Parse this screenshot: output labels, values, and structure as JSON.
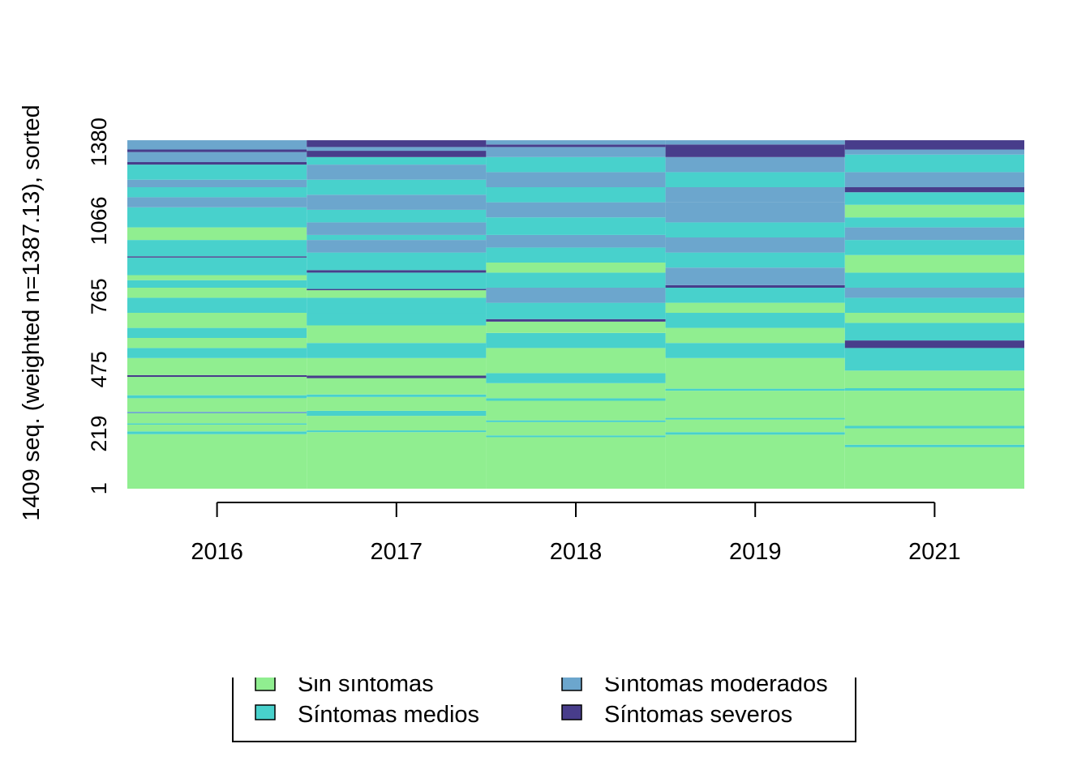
{
  "chart_data": {
    "type": "sequence-index-plot",
    "ylabel": "1409 seq. (weighted n=1387.13), sorted",
    "xlabel": "",
    "categories": [
      "2016",
      "2017",
      "2018",
      "2019",
      "2021"
    ],
    "y_ticks": [
      "1",
      "219",
      "475",
      "765",
      "1066",
      "1380"
    ],
    "y_tick_values": [
      1,
      219,
      475,
      765,
      1066,
      1380
    ],
    "y_max": 1387.13,
    "states": [
      {
        "name": "Sin síntomas",
        "color": "#90EE90"
      },
      {
        "name": "Síntomas medios",
        "color": "#48D1CC"
      },
      {
        "name": "Síntomas moderados",
        "color": "#6CA6CD"
      },
      {
        "name": "Síntomas severos",
        "color": "#483D8B"
      }
    ],
    "columns": [
      {
        "year": "2016",
        "segments": [
          [
            0,
            217,
            0
          ],
          [
            217,
            228,
            1
          ],
          [
            228,
            255,
            0
          ],
          [
            255,
            260,
            1
          ],
          [
            260,
            300,
            0
          ],
          [
            300,
            306,
            2
          ],
          [
            306,
            360,
            0
          ],
          [
            360,
            372,
            1
          ],
          [
            372,
            445,
            0
          ],
          [
            445,
            452,
            3
          ],
          [
            452,
            520,
            0
          ],
          [
            520,
            560,
            1
          ],
          [
            560,
            600,
            0
          ],
          [
            600,
            640,
            1
          ],
          [
            640,
            700,
            0
          ],
          [
            700,
            760,
            1
          ],
          [
            760,
            800,
            0
          ],
          [
            800,
            830,
            1
          ],
          [
            830,
            850,
            0
          ],
          [
            850,
            920,
            1
          ],
          [
            920,
            925,
            3
          ],
          [
            925,
            990,
            1
          ],
          [
            990,
            1040,
            0
          ],
          [
            1040,
            1120,
            1
          ],
          [
            1120,
            1160,
            2
          ],
          [
            1160,
            1200,
            1
          ],
          [
            1200,
            1230,
            2
          ],
          [
            1230,
            1290,
            1
          ],
          [
            1290,
            1300,
            3
          ],
          [
            1300,
            1340,
            2
          ],
          [
            1340,
            1350,
            3
          ],
          [
            1350,
            1387,
            2
          ]
        ]
      },
      {
        "year": "2017",
        "segments": [
          [
            0,
            225,
            0
          ],
          [
            225,
            232,
            1
          ],
          [
            232,
            290,
            0
          ],
          [
            290,
            310,
            1
          ],
          [
            310,
            365,
            0
          ],
          [
            365,
            375,
            1
          ],
          [
            375,
            440,
            0
          ],
          [
            440,
            450,
            3
          ],
          [
            450,
            520,
            0
          ],
          [
            520,
            580,
            1
          ],
          [
            580,
            650,
            0
          ],
          [
            650,
            700,
            1
          ],
          [
            700,
            760,
            1
          ],
          [
            760,
            790,
            0
          ],
          [
            790,
            795,
            3
          ],
          [
            795,
            860,
            1
          ],
          [
            860,
            870,
            3
          ],
          [
            870,
            940,
            1
          ],
          [
            940,
            990,
            2
          ],
          [
            990,
            1010,
            1
          ],
          [
            1010,
            1060,
            2
          ],
          [
            1060,
            1110,
            1
          ],
          [
            1110,
            1170,
            2
          ],
          [
            1170,
            1230,
            1
          ],
          [
            1230,
            1290,
            2
          ],
          [
            1290,
            1320,
            1
          ],
          [
            1320,
            1345,
            3
          ],
          [
            1345,
            1360,
            2
          ],
          [
            1360,
            1387,
            3
          ]
        ]
      },
      {
        "year": "2018",
        "segments": [
          [
            0,
            205,
            0
          ],
          [
            205,
            212,
            1
          ],
          [
            212,
            265,
            0
          ],
          [
            265,
            272,
            1
          ],
          [
            272,
            350,
            0
          ],
          [
            350,
            360,
            1
          ],
          [
            360,
            420,
            0
          ],
          [
            420,
            460,
            1
          ],
          [
            460,
            560,
            0
          ],
          [
            560,
            620,
            1
          ],
          [
            620,
            665,
            0
          ],
          [
            665,
            675,
            3
          ],
          [
            675,
            740,
            1
          ],
          [
            740,
            800,
            2
          ],
          [
            800,
            860,
            1
          ],
          [
            860,
            900,
            0
          ],
          [
            900,
            960,
            1
          ],
          [
            960,
            1010,
            2
          ],
          [
            1010,
            1080,
            1
          ],
          [
            1080,
            1140,
            2
          ],
          [
            1140,
            1200,
            1
          ],
          [
            1200,
            1260,
            2
          ],
          [
            1260,
            1320,
            1
          ],
          [
            1320,
            1360,
            2
          ],
          [
            1360,
            1370,
            3
          ],
          [
            1370,
            1387,
            2
          ]
        ]
      },
      {
        "year": "2019",
        "segments": [
          [
            0,
            215,
            0
          ],
          [
            215,
            225,
            1
          ],
          [
            225,
            275,
            0
          ],
          [
            275,
            282,
            1
          ],
          [
            282,
            390,
            0
          ],
          [
            390,
            398,
            1
          ],
          [
            398,
            520,
            0
          ],
          [
            520,
            580,
            1
          ],
          [
            580,
            640,
            0
          ],
          [
            640,
            700,
            1
          ],
          [
            700,
            740,
            0
          ],
          [
            740,
            800,
            1
          ],
          [
            800,
            810,
            3
          ],
          [
            810,
            880,
            2
          ],
          [
            880,
            940,
            1
          ],
          [
            940,
            1000,
            2
          ],
          [
            1000,
            1060,
            1
          ],
          [
            1060,
            1140,
            2
          ],
          [
            1140,
            1200,
            2
          ],
          [
            1200,
            1260,
            1
          ],
          [
            1260,
            1320,
            2
          ],
          [
            1320,
            1370,
            3
          ],
          [
            1370,
            1387,
            2
          ]
        ]
      },
      {
        "year": "2021",
        "segments": [
          [
            0,
            165,
            0
          ],
          [
            165,
            175,
            1
          ],
          [
            175,
            240,
            0
          ],
          [
            240,
            250,
            1
          ],
          [
            250,
            390,
            0
          ],
          [
            390,
            400,
            1
          ],
          [
            400,
            470,
            0
          ],
          [
            470,
            560,
            1
          ],
          [
            560,
            590,
            3
          ],
          [
            590,
            660,
            1
          ],
          [
            660,
            700,
            0
          ],
          [
            700,
            760,
            1
          ],
          [
            760,
            800,
            2
          ],
          [
            800,
            860,
            1
          ],
          [
            860,
            930,
            0
          ],
          [
            930,
            990,
            1
          ],
          [
            990,
            1040,
            2
          ],
          [
            1040,
            1080,
            1
          ],
          [
            1080,
            1130,
            0
          ],
          [
            1130,
            1180,
            1
          ],
          [
            1180,
            1200,
            3
          ],
          [
            1200,
            1260,
            2
          ],
          [
            1260,
            1330,
            1
          ],
          [
            1330,
            1350,
            2
          ],
          [
            1350,
            1387,
            3
          ]
        ]
      }
    ],
    "legend_placement": "bottom"
  }
}
